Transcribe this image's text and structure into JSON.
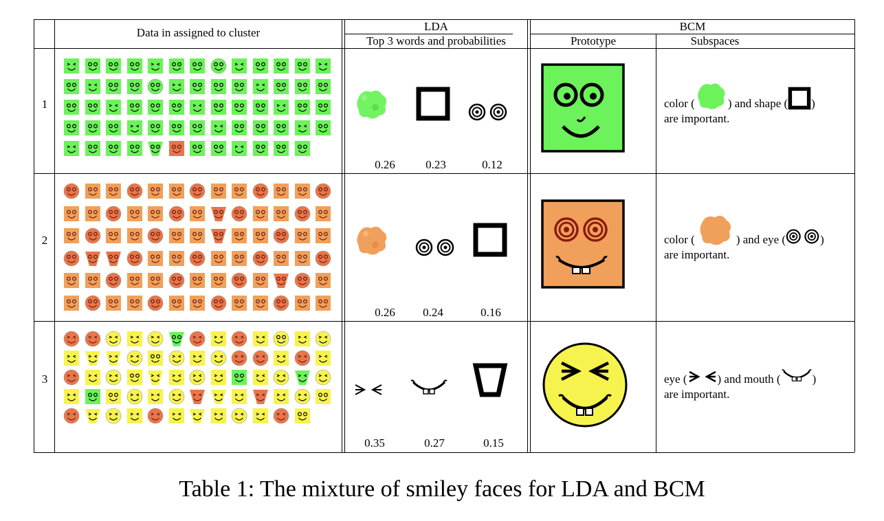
{
  "table": {
    "headers": {
      "data": "Data in assigned to cluster",
      "lda": "LDA",
      "lda_sub": "Top 3 words and probabilities",
      "bcm": "BCM",
      "prototype": "Prototype",
      "subspaces": "Subspaces"
    },
    "rows": [
      {
        "id": "1",
        "lda_words": [
          {
            "icon": "green-color-blob-icon",
            "prob": "0.26"
          },
          {
            "icon": "square-shape-icon",
            "prob": "0.23"
          },
          {
            "icon": "spiral-eyes-icon",
            "prob": "0.12"
          }
        ],
        "prototype_icon": "green-square-smiley-icon",
        "subspace": {
          "pre": "color (",
          "mid": ") and shape (",
          "post": ")",
          "line2": "are important."
        }
      },
      {
        "id": "2",
        "lda_words": [
          {
            "icon": "orange-color-blob-icon",
            "prob": "0.26"
          },
          {
            "icon": "spiral-eyes-icon",
            "prob": "0.24"
          },
          {
            "icon": "square-shape-icon",
            "prob": "0.16"
          }
        ],
        "prototype_icon": "orange-square-spiral-smiley-icon",
        "subspace": {
          "pre": "color (",
          "mid": ") and eye (",
          "post": ")",
          "line2": "are important."
        }
      },
      {
        "id": "3",
        "lda_words": [
          {
            "icon": "squint-eyes-icon",
            "prob": "0.35"
          },
          {
            "icon": "toothy-mouth-icon",
            "prob": "0.27"
          },
          {
            "icon": "trapezoid-shape-icon",
            "prob": "0.15"
          }
        ],
        "prototype_icon": "yellow-circle-squint-smiley-icon",
        "subspace": {
          "pre": "eye (",
          "mid": ") and mouth (",
          "post": ")",
          "line2": "are important."
        }
      }
    ]
  },
  "colors": {
    "green": "#6cf25a",
    "orange": "#f0a05a",
    "orange_face": "#e8764a",
    "yellow": "#f7f34e"
  },
  "caption": "Table 1: The mixture of smiley faces for LDA and BCM"
}
